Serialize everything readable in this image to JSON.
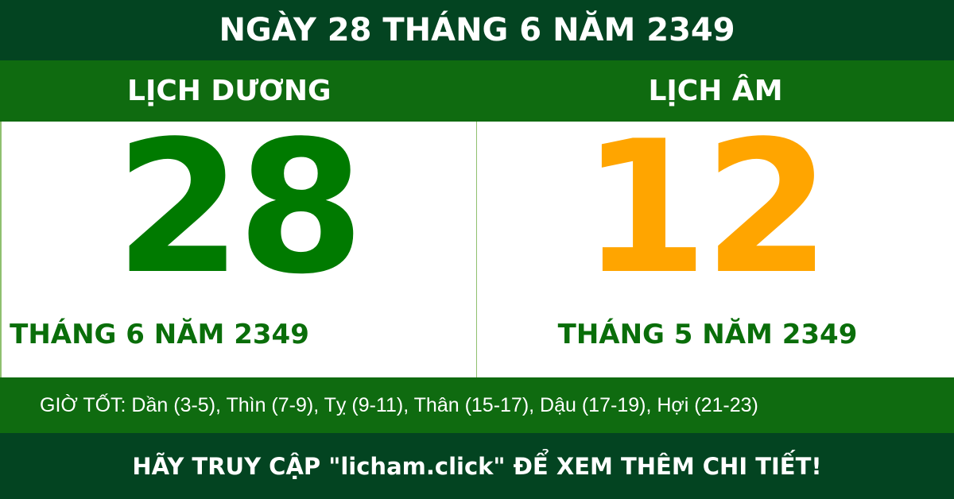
{
  "title": "NGÀY 28 THÁNG 6 NĂM 2349",
  "solar": {
    "heading": "LỊCH DƯƠNG",
    "day": "28",
    "month_year": "THÁNG 6 NĂM 2349"
  },
  "lunar": {
    "heading": "LỊCH ÂM",
    "day": "12",
    "month_year": "THÁNG 5 NĂM 2349"
  },
  "good_hours": "GIỜ TỐT: Dần (3-5), Thìn (7-9), Tỵ (9-11), Thân (15-17), Dậu (17-19), Hợi (21-23)",
  "footer": "HÃY TRUY CẬP \"licham.click\" ĐỂ XEM THÊM CHI TIẾT!",
  "colors": {
    "dark_green": "#034421",
    "green": "#0f6b10",
    "solar_day": "#007a00",
    "lunar_day": "#ffa500"
  }
}
